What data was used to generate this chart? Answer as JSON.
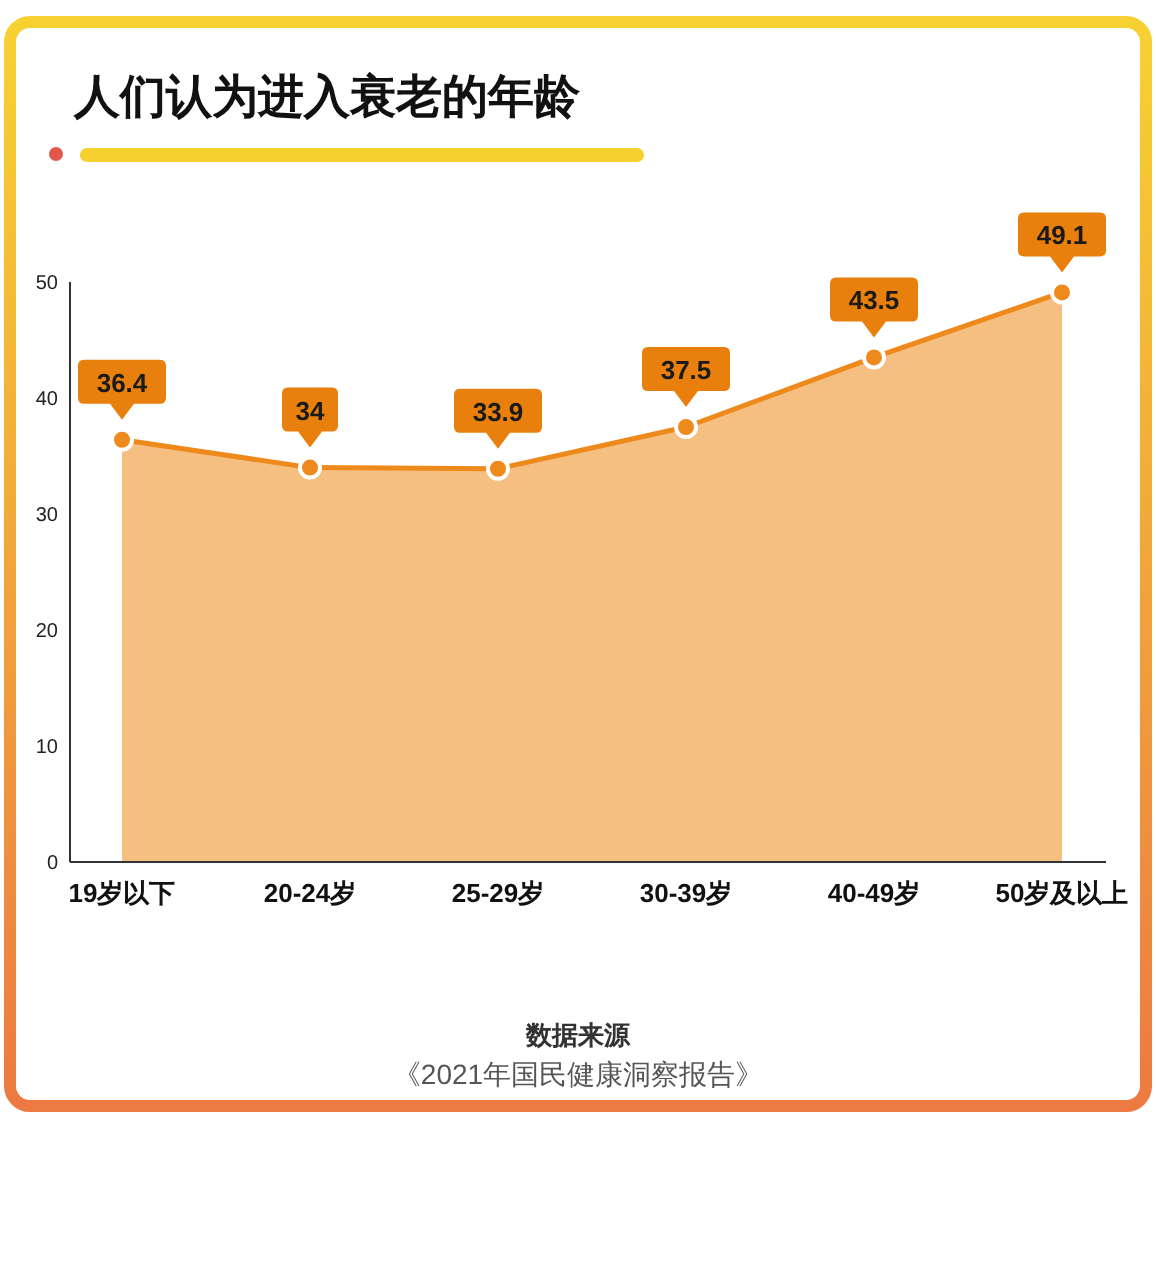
{
  "chart_data": {
    "type": "area",
    "title": "人们认为进入衰老的年龄",
    "categories": [
      "19岁以下",
      "20-24岁",
      "25-29岁",
      "30-39岁",
      "40-49岁",
      "50岁及以上"
    ],
    "values": [
      36.4,
      34,
      33.9,
      37.5,
      43.5,
      49.1
    ],
    "color": "#ee8a1c",
    "ylim": [
      0,
      50
    ],
    "yticks": [
      0,
      10,
      20,
      30,
      40,
      50
    ],
    "data_labels": true,
    "marker": "circle",
    "annotations": [
      "数据来源",
      "《2021年国民健康洞察报告》"
    ]
  }
}
